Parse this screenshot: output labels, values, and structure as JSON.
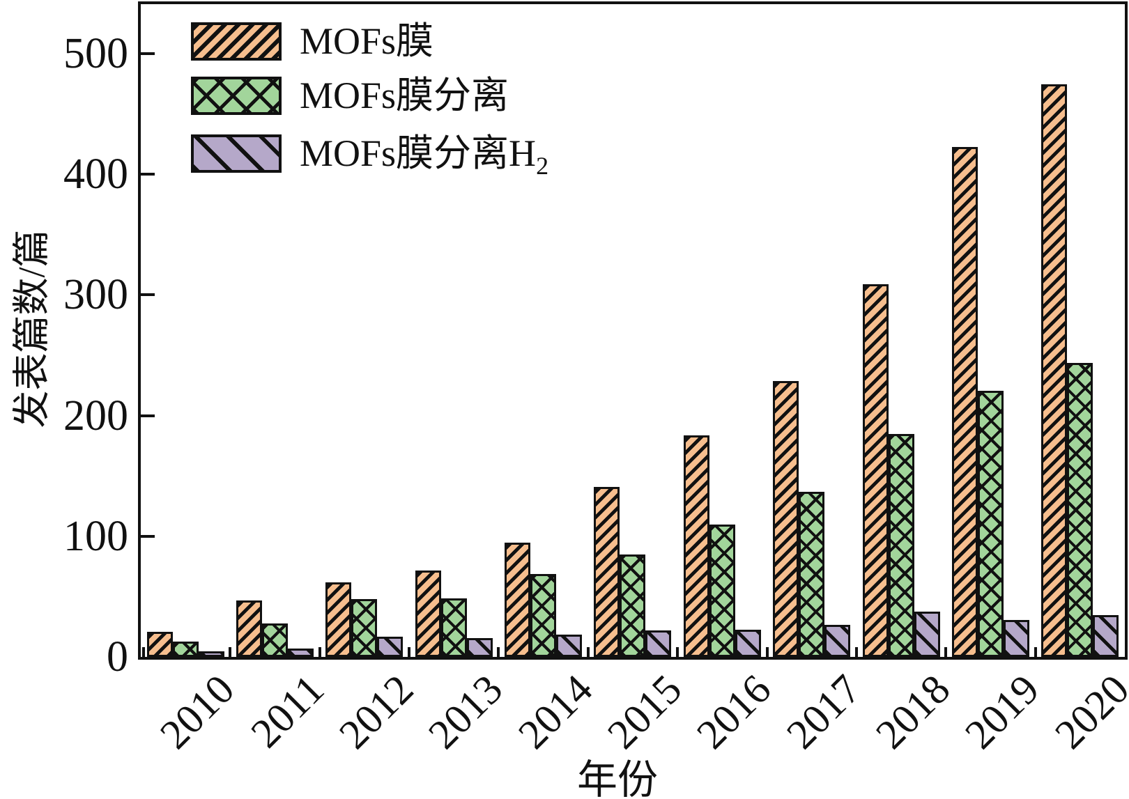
{
  "chart_data": {
    "type": "bar",
    "title": "",
    "xlabel": "年份",
    "ylabel": "发表篇数/篇",
    "categories": [
      "2010",
      "2011",
      "2012",
      "2013",
      "2014",
      "2015",
      "2016",
      "2017",
      "2018",
      "2019",
      "2020"
    ],
    "series": [
      {
        "key": "s1",
        "name": "MOFs膜",
        "name_base": "MOFs膜",
        "name_sub": "",
        "fill_color": "#F6BE8E",
        "hatch": "/",
        "values": [
          19,
          45,
          60,
          70,
          93,
          139,
          182,
          227,
          307,
          421,
          473
        ]
      },
      {
        "key": "s2",
        "name": "MOFs膜分离",
        "name_base": "MOFs膜分离",
        "name_sub": "",
        "fill_color": "#A2D59B",
        "hatch": "x",
        "values": [
          11,
          26,
          46,
          47,
          67,
          83,
          108,
          135,
          183,
          219,
          242
        ]
      },
      {
        "key": "s3",
        "name": "MOFs膜分离H2",
        "name_base": "MOFs膜分离H",
        "name_sub": "2",
        "fill_color": "#B5A8C9",
        "hatch": "\\",
        "values": [
          3,
          5,
          15,
          14,
          17,
          20,
          21,
          25,
          36,
          29,
          33
        ]
      }
    ],
    "yticks": [
      0,
      100,
      200,
      300,
      400,
      500
    ],
    "ylim": [
      0,
      541
    ],
    "grid": false,
    "legend_position": "top-left",
    "hatch_line_color": "#111111",
    "axis_color": "#111111",
    "background_color": "#ffffff"
  }
}
